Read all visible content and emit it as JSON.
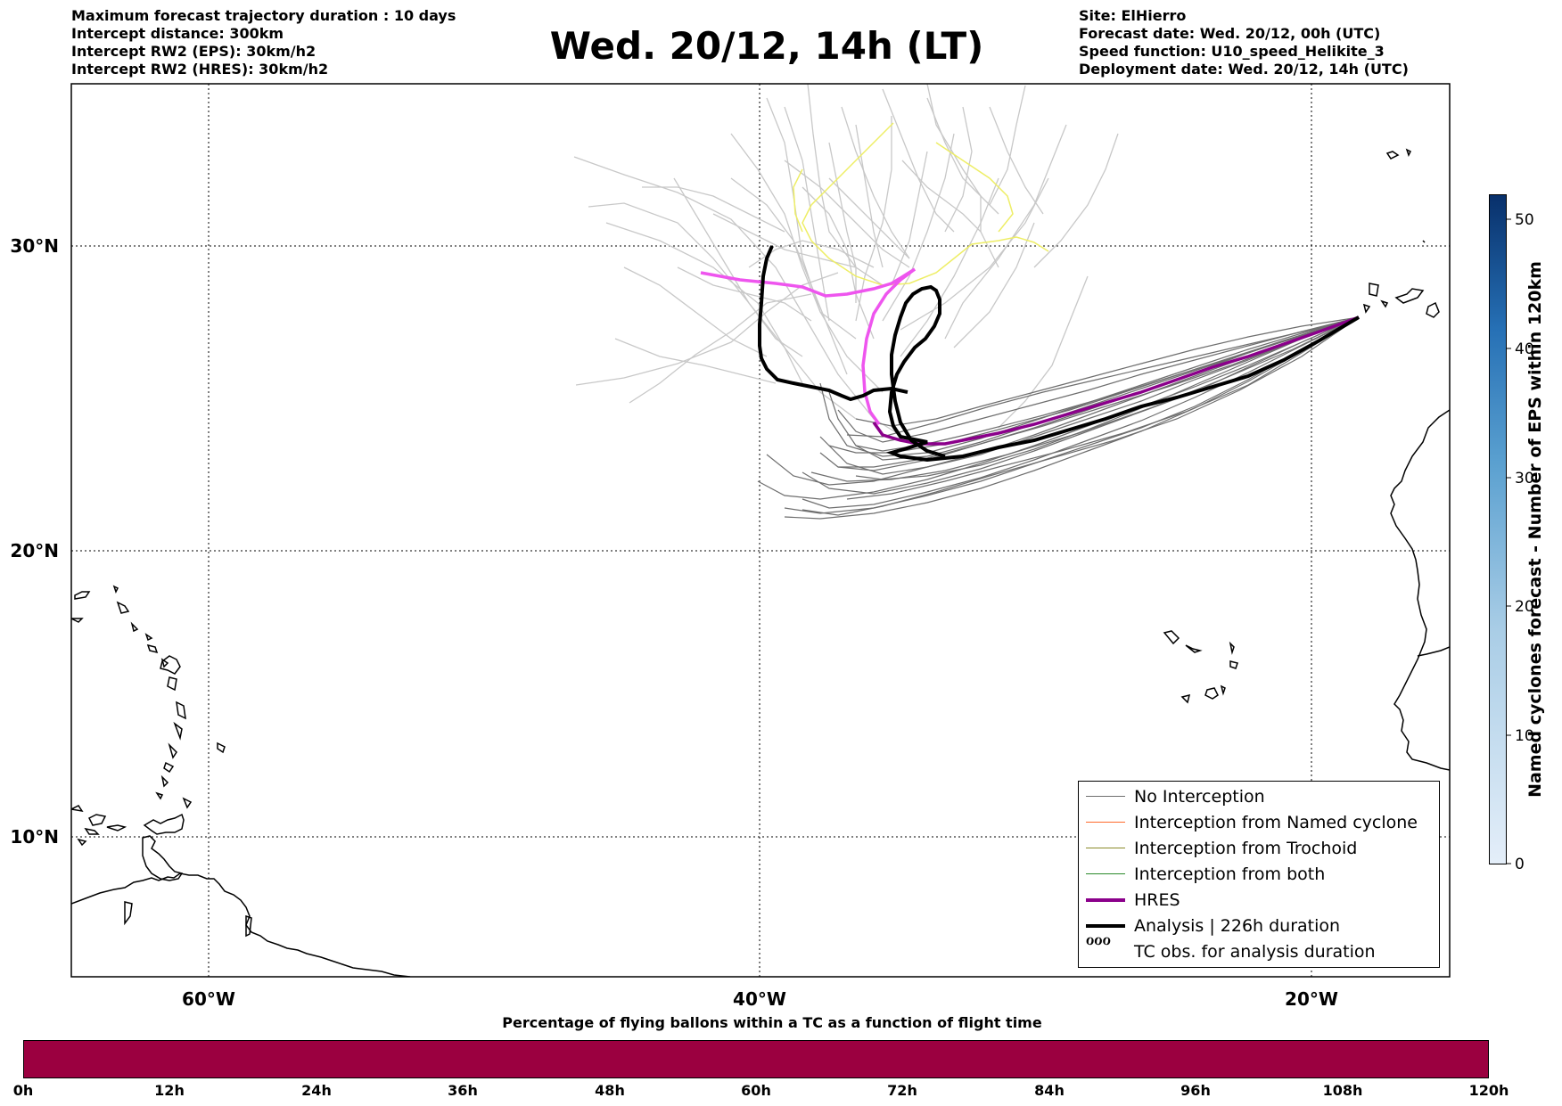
{
  "title": "Wed. 20/12, 14h (LT)",
  "header_left": [
    "Maximum forecast trajectory duration : 10 days",
    "Intercept distance: 300km",
    "Intercept RW2 (EPS):  30km/h2",
    "Intercept RW2 (HRES): 30km/h2"
  ],
  "header_right": [
    "Site: ElHierro",
    "Forecast date: Wed. 20/12, 00h (UTC)",
    "Speed function: U10_speed_Helikite_3",
    "Deployment date: Wed. 20/12, 14h (UTC)"
  ],
  "map": {
    "lon_labels": [
      "60°W",
      "40°W",
      "20°W"
    ],
    "lat_labels": [
      "30°N",
      "20°N",
      "10°N"
    ],
    "grid": "dotted",
    "colors": {
      "no_interception": "#6e6e6e",
      "eps_light": "#c8c8c8",
      "named_cyclone": "#ff6a2b",
      "trochoid": "#8a8a2a",
      "both": "#2a8a2a",
      "hres": "#8b008b",
      "analysis": "#000000",
      "pink_track": "#ee55ee",
      "yellow_track": "#eeee66"
    }
  },
  "legend": {
    "items": [
      {
        "label": "No Interception",
        "color": "#6e6e6e",
        "style": "thin"
      },
      {
        "label": "Interception from Named cyclone",
        "color": "#ff6a2b",
        "style": "thin"
      },
      {
        "label": "Interception from Trochoid",
        "color": "#8a8a2a",
        "style": "thin"
      },
      {
        "label": "Interception from both",
        "color": "#2a8a2a",
        "style": "thin"
      },
      {
        "label": "HRES",
        "color": "#8b008b",
        "style": "thick"
      },
      {
        "label": "Analysis | 226h duration",
        "color": "#000000",
        "style": "thick"
      },
      {
        "label": "TC obs. for analysis duration",
        "color": "#000000",
        "style": "symbol",
        "symbol": "ℴℴℴ"
      }
    ]
  },
  "colorbar_right": {
    "title": "Named cyclones forecast - Number of EPS within 120km",
    "ticks": [
      "0",
      "10",
      "20",
      "30",
      "40",
      "50"
    ],
    "range": [
      0,
      52
    ]
  },
  "colorbar_bottom": {
    "title": "Percentage of flying ballons within a TC as a function of flight time",
    "ticks": [
      "0h",
      "12h",
      "24h",
      "36h",
      "48h",
      "60h",
      "72h",
      "84h",
      "96h",
      "108h",
      "120h"
    ],
    "color": "#9b0040"
  }
}
